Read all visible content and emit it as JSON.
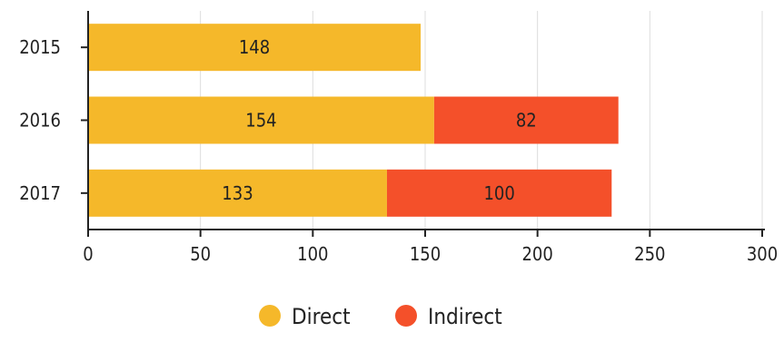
{
  "chart_data": {
    "type": "bar",
    "orientation": "horizontal",
    "stacked": true,
    "categories": [
      "2015",
      "2016",
      "2017"
    ],
    "series": [
      {
        "name": "Direct",
        "color": "#f5b82a",
        "values": [
          148,
          154,
          133
        ]
      },
      {
        "name": "Indirect",
        "color": "#f4502a",
        "values": [
          null,
          82,
          100
        ]
      }
    ],
    "xlim": [
      0,
      300
    ],
    "xticks": [
      "0",
      "50",
      "100",
      "150",
      "200",
      "250",
      "300"
    ],
    "grid": "vertical",
    "legend_position": "bottom-center",
    "title": "",
    "xlabel": "",
    "ylabel": ""
  }
}
